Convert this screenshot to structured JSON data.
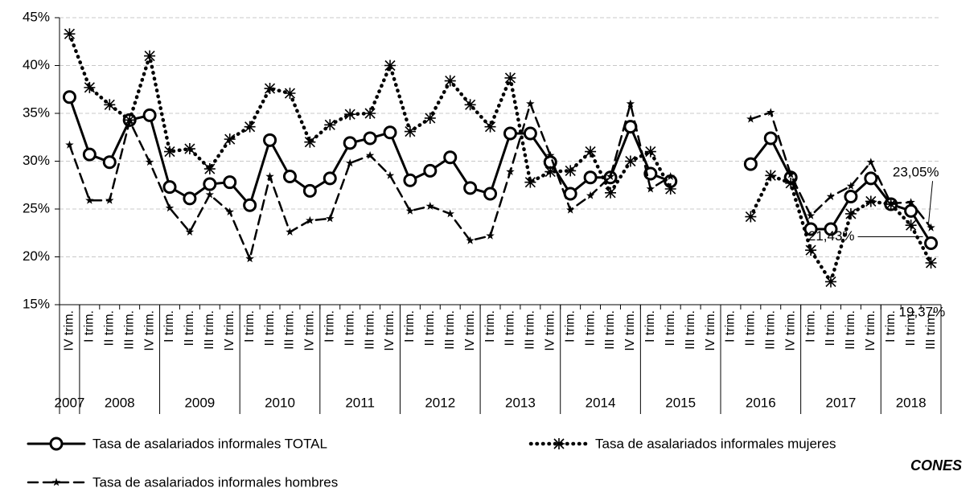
{
  "chart_data": {
    "type": "line",
    "categories": [
      "IV trim.",
      "I trim.",
      "II trim.",
      "III trim.",
      "IV trim.",
      "I trim.",
      "II trim.",
      "III trim.",
      "IV trim.",
      "I trim.",
      "II trim.",
      "III trim.",
      "IV trim.",
      "I trim.",
      "II trim.",
      "III trim.",
      "IV trim.",
      "I trim.",
      "II trim.",
      "III trim.",
      "IV trim.",
      "I trim.",
      "II trim.",
      "III trim.",
      "IV trim.",
      "I trim.",
      "II trim.",
      "III trim.",
      "IV trim.",
      "I trim.",
      "II trim.",
      "III trim.",
      "IV trim.",
      "I trim.",
      "II trim.",
      "III trim.",
      "IV trim.",
      "I trim.",
      "II trim.",
      "III trim.",
      "IV trim.",
      "I trim.",
      "II trim.",
      "III trim."
    ],
    "year_labels": [
      "2007",
      "2008",
      null,
      null,
      null,
      "2009",
      null,
      null,
      null,
      "2010",
      null,
      null,
      null,
      "2011",
      null,
      null,
      null,
      "2012",
      null,
      null,
      null,
      "2013",
      null,
      null,
      null,
      "2014",
      null,
      null,
      null,
      "2015",
      null,
      null,
      null,
      "2016",
      null,
      null,
      null,
      "2017",
      null,
      null,
      null,
      "2018",
      null,
      null
    ],
    "series": [
      {
        "name": "Tasa de asalariados informales TOTAL",
        "color": "#000000",
        "dash": "solid",
        "marker": "circle",
        "values": [
          36.7,
          30.7,
          29.9,
          34.3,
          34.8,
          27.3,
          26.1,
          27.6,
          27.8,
          25.4,
          32.2,
          28.4,
          26.9,
          28.2,
          31.9,
          32.4,
          33.0,
          28.0,
          29.0,
          30.4,
          27.2,
          26.6,
          32.9,
          32.9,
          29.9,
          26.6,
          28.3,
          28.3,
          33.6,
          28.7,
          27.9,
          null,
          null,
          null,
          29.7,
          32.4,
          28.3,
          22.9,
          22.9,
          26.3,
          28.2,
          25.5,
          24.8,
          21.43
        ],
        "value_labels": [
          null,
          null,
          null,
          null,
          null,
          null,
          null,
          null,
          null,
          null,
          null,
          null,
          null,
          null,
          null,
          null,
          null,
          null,
          null,
          null,
          null,
          null,
          null,
          null,
          null,
          null,
          null,
          null,
          null,
          null,
          null,
          null,
          null,
          null,
          null,
          null,
          null,
          null,
          null,
          null,
          null,
          null,
          null,
          "21,43%"
        ]
      },
      {
        "name": "Tasa de asalariados informales mujeres",
        "color": "#000000",
        "dash": "dotted",
        "marker": "asterisk",
        "values": [
          43.3,
          37.7,
          35.9,
          34.3,
          41.0,
          31.0,
          31.3,
          29.2,
          32.3,
          33.6,
          37.6,
          37.1,
          32.0,
          33.8,
          34.9,
          35.0,
          40.0,
          33.1,
          34.5,
          38.4,
          35.9,
          33.6,
          38.7,
          27.8,
          28.9,
          29.0,
          31.0,
          26.7,
          30.0,
          31.0,
          27.1,
          null,
          null,
          null,
          24.2,
          28.5,
          27.7,
          20.7,
          17.4,
          24.5,
          25.8,
          25.5,
          23.3,
          19.37
        ],
        "value_labels": [
          null,
          null,
          null,
          null,
          null,
          null,
          null,
          null,
          null,
          null,
          null,
          null,
          null,
          null,
          null,
          null,
          null,
          null,
          null,
          null,
          null,
          null,
          null,
          null,
          null,
          null,
          null,
          null,
          null,
          null,
          null,
          null,
          null,
          null,
          null,
          null,
          null,
          null,
          null,
          null,
          null,
          null,
          null,
          "19,37%"
        ]
      },
      {
        "name": "Tasa de asalariados informales hombres",
        "color": "#000000",
        "dash": "dashed",
        "marker": "star",
        "values": [
          31.7,
          25.9,
          25.9,
          34.2,
          29.9,
          25.1,
          22.6,
          26.5,
          24.7,
          19.8,
          28.4,
          22.6,
          23.8,
          24.0,
          29.8,
          30.6,
          28.5,
          24.8,
          25.3,
          24.5,
          21.7,
          22.2,
          28.9,
          36.0,
          30.6,
          24.9,
          26.4,
          28.4,
          36.0,
          27.1,
          28.4,
          null,
          null,
          null,
          34.4,
          35.1,
          28.6,
          24.3,
          26.3,
          27.4,
          29.9,
          25.6,
          25.7,
          23.05
        ],
        "value_labels": [
          null,
          null,
          null,
          null,
          null,
          null,
          null,
          null,
          null,
          null,
          null,
          null,
          null,
          null,
          null,
          null,
          null,
          null,
          null,
          null,
          null,
          null,
          null,
          null,
          null,
          null,
          null,
          null,
          null,
          null,
          null,
          null,
          null,
          null,
          null,
          null,
          null,
          null,
          null,
          null,
          null,
          null,
          null,
          "23,05%"
        ]
      }
    ],
    "ylim": [
      15,
      45
    ],
    "yticks": [
      {
        "value": 15,
        "label": "15%"
      },
      {
        "value": 20,
        "label": "20%"
      },
      {
        "value": 25,
        "label": "25%"
      },
      {
        "value": 30,
        "label": "30%"
      },
      {
        "value": 35,
        "label": "35%"
      },
      {
        "value": 40,
        "label": "40%"
      },
      {
        "value": 45,
        "label": "45%"
      }
    ],
    "grid": true,
    "source": "CONES"
  }
}
